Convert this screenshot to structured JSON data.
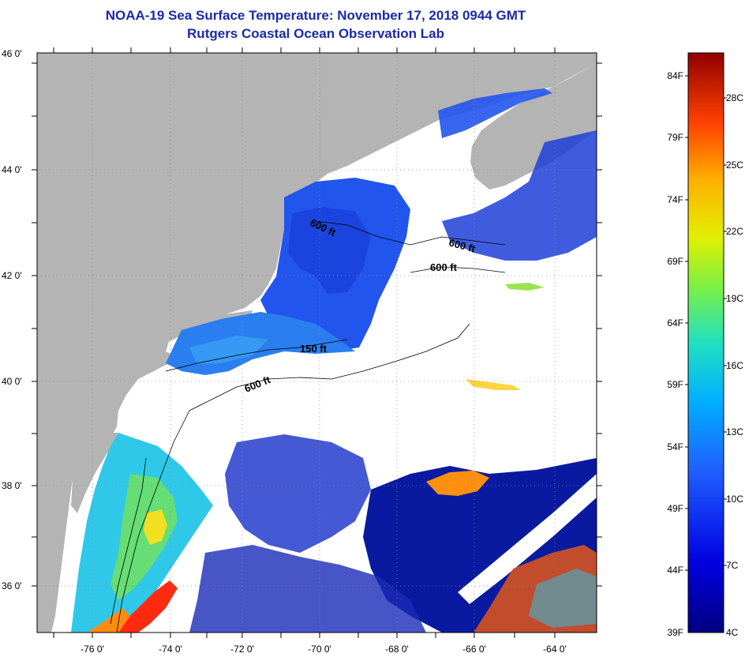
{
  "header": {
    "title": "NOAA-19 Sea Surface Temperature:  November 17, 2018 0944 GMT",
    "subtitle": "Rutgers Coastal Ocean Observation Lab"
  },
  "axes": {
    "lat_labels": [
      "46 0'",
      "44 0'",
      "42 0'",
      "40 0'",
      "38 0'",
      "36 0'"
    ],
    "lon_labels": [
      "-76 0'",
      "-74 0'",
      "-72 0'",
      "-70 0'",
      "-68 0'",
      "-66 0'",
      "-64 0'"
    ]
  },
  "contour_labels": [
    "600 ft",
    "600 ft",
    "600 ft",
    "150 ft",
    "600 ft"
  ],
  "colorbar": {
    "fahrenheit": [
      "84F",
      "79F",
      "74F",
      "69F",
      "64F",
      "59F",
      "54F",
      "49F",
      "44F",
      "39F"
    ],
    "celsius": [
      "28C",
      "25C",
      "22C",
      "19C",
      "16C",
      "13C",
      "10C",
      "7C",
      "4C"
    ]
  },
  "colors": {
    "land": "#b4b4b4",
    "cloud": "#ffffff",
    "title": "#1a2aa8"
  }
}
